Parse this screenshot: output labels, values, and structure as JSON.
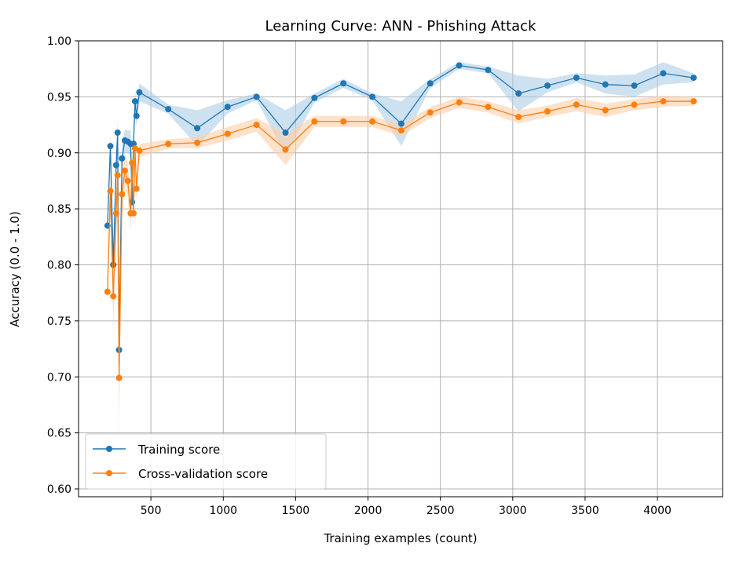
{
  "chart_data": {
    "type": "line",
    "title": "Learning Curve: ANN - Phishing Attack",
    "xlabel": "Training examples (count)",
    "ylabel": "Accuracy (0.0 - 1.0)",
    "xlim": [
      0,
      4450
    ],
    "ylim": [
      0.593,
      1.0
    ],
    "xticks": [
      500,
      1000,
      1500,
      2000,
      2500,
      3000,
      3500,
      4000
    ],
    "yticks": [
      0.6,
      0.65,
      0.7,
      0.75,
      0.8,
      0.85,
      0.9,
      0.95,
      1.0
    ],
    "grid": true,
    "legend_position": "lower-left",
    "x": [
      200,
      220,
      240,
      260,
      270,
      280,
      300,
      320,
      340,
      360,
      370,
      380,
      390,
      400,
      420,
      620,
      820,
      1030,
      1230,
      1430,
      1630,
      1830,
      2030,
      2230,
      2430,
      2630,
      2830,
      3040,
      3240,
      3440,
      3640,
      3840,
      4040,
      4250
    ],
    "series": [
      {
        "name": "Training score",
        "color": "#1f77b4",
        "band_color": "#aecde6",
        "values": [
          0.835,
          0.906,
          0.8,
          0.889,
          0.918,
          0.724,
          0.895,
          0.911,
          0.91,
          0.908,
          0.856,
          0.908,
          0.946,
          0.933,
          0.954,
          0.939,
          0.922,
          0.941,
          0.95,
          0.918,
          0.949,
          0.962,
          0.95,
          0.926,
          0.962,
          0.978,
          0.974,
          0.953,
          0.96,
          0.967,
          0.961,
          0.96,
          0.971,
          0.967
        ],
        "spread": [
          0.006,
          0.01,
          0.02,
          0.012,
          0.012,
          0.03,
          0.012,
          0.01,
          0.01,
          0.012,
          0.018,
          0.012,
          0.01,
          0.01,
          0.008,
          0.004,
          0.016,
          0.006,
          0.003,
          0.02,
          0.004,
          0.004,
          0.003,
          0.02,
          0.004,
          0.003,
          0.003,
          0.016,
          0.006,
          0.004,
          0.008,
          0.01,
          0.01,
          0.004
        ]
      },
      {
        "name": "Cross-validation score",
        "color": "#ff7f0e",
        "band_color": "#ffcfa8",
        "values": [
          0.776,
          0.866,
          0.772,
          0.846,
          0.88,
          0.699,
          0.863,
          0.884,
          0.875,
          0.846,
          0.891,
          0.846,
          0.904,
          0.868,
          0.902,
          0.908,
          0.909,
          0.917,
          0.925,
          0.903,
          0.928,
          0.928,
          0.928,
          0.92,
          0.936,
          0.945,
          0.941,
          0.932,
          0.937,
          0.943,
          0.938,
          0.943,
          0.946,
          0.946
        ],
        "spread": [
          0.01,
          0.018,
          0.03,
          0.02,
          0.02,
          0.05,
          0.018,
          0.015,
          0.015,
          0.015,
          0.012,
          0.015,
          0.008,
          0.012,
          0.006,
          0.004,
          0.005,
          0.006,
          0.006,
          0.014,
          0.005,
          0.005,
          0.005,
          0.005,
          0.005,
          0.005,
          0.005,
          0.006,
          0.005,
          0.006,
          0.006,
          0.005,
          0.005,
          0.004
        ]
      }
    ]
  }
}
